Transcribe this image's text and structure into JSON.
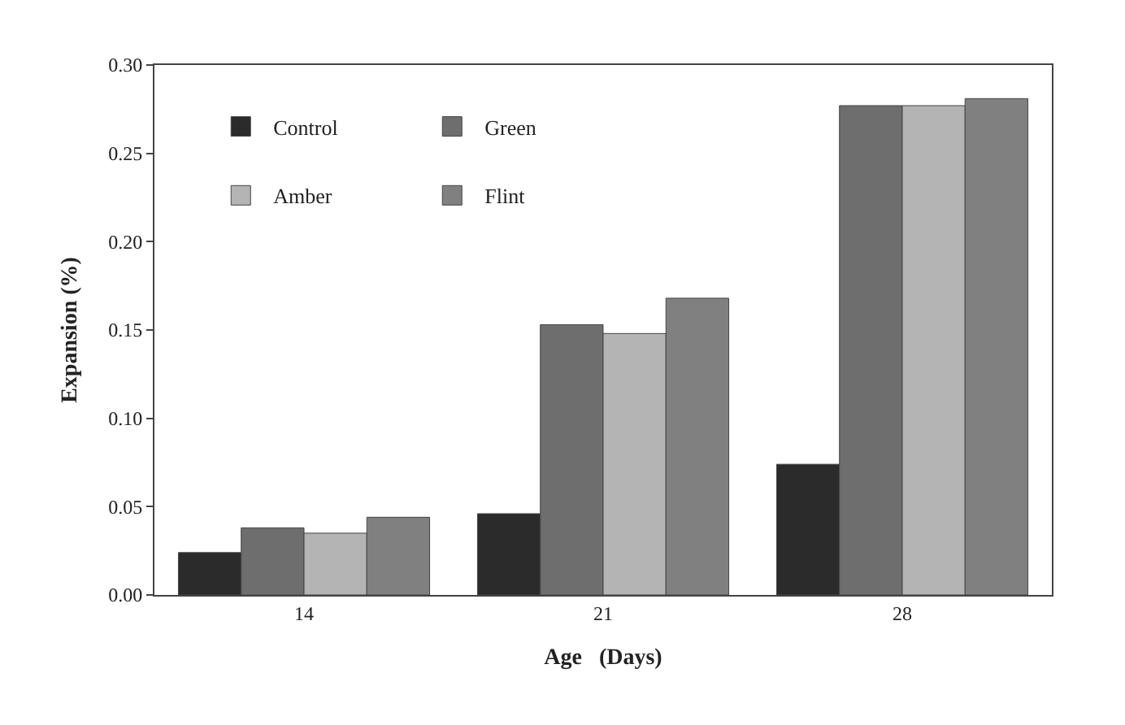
{
  "chart_data": {
    "type": "bar",
    "xlabel": "Age   (Days)",
    "ylabel": "Expansion (%)",
    "categories": [
      "14",
      "21",
      "28"
    ],
    "series": [
      {
        "name": "Control",
        "color": "#2b2b2b",
        "values": [
          0.024,
          0.046,
          0.074
        ]
      },
      {
        "name": "Green",
        "color": "#6e6e6e",
        "values": [
          0.038,
          0.153,
          0.277
        ]
      },
      {
        "name": "Amber",
        "color": "#b4b4b4",
        "values": [
          0.035,
          0.148,
          0.277
        ]
      },
      {
        "name": "Flint",
        "color": "#808080",
        "values": [
          0.044,
          0.168,
          0.281
        ]
      }
    ],
    "ylim": [
      0,
      0.3
    ],
    "yticks": [
      {
        "value": 0,
        "label": "0.00"
      },
      {
        "value": 0.05,
        "label": "0.05"
      },
      {
        "value": 0.1,
        "label": "0.10"
      },
      {
        "value": 0.15,
        "label": "0.15"
      },
      {
        "value": 0.2,
        "label": "0.20"
      },
      {
        "value": 0.25,
        "label": "0.25"
      },
      {
        "value": 0.3,
        "label": "0.30"
      }
    ],
    "legend": "top left"
  }
}
